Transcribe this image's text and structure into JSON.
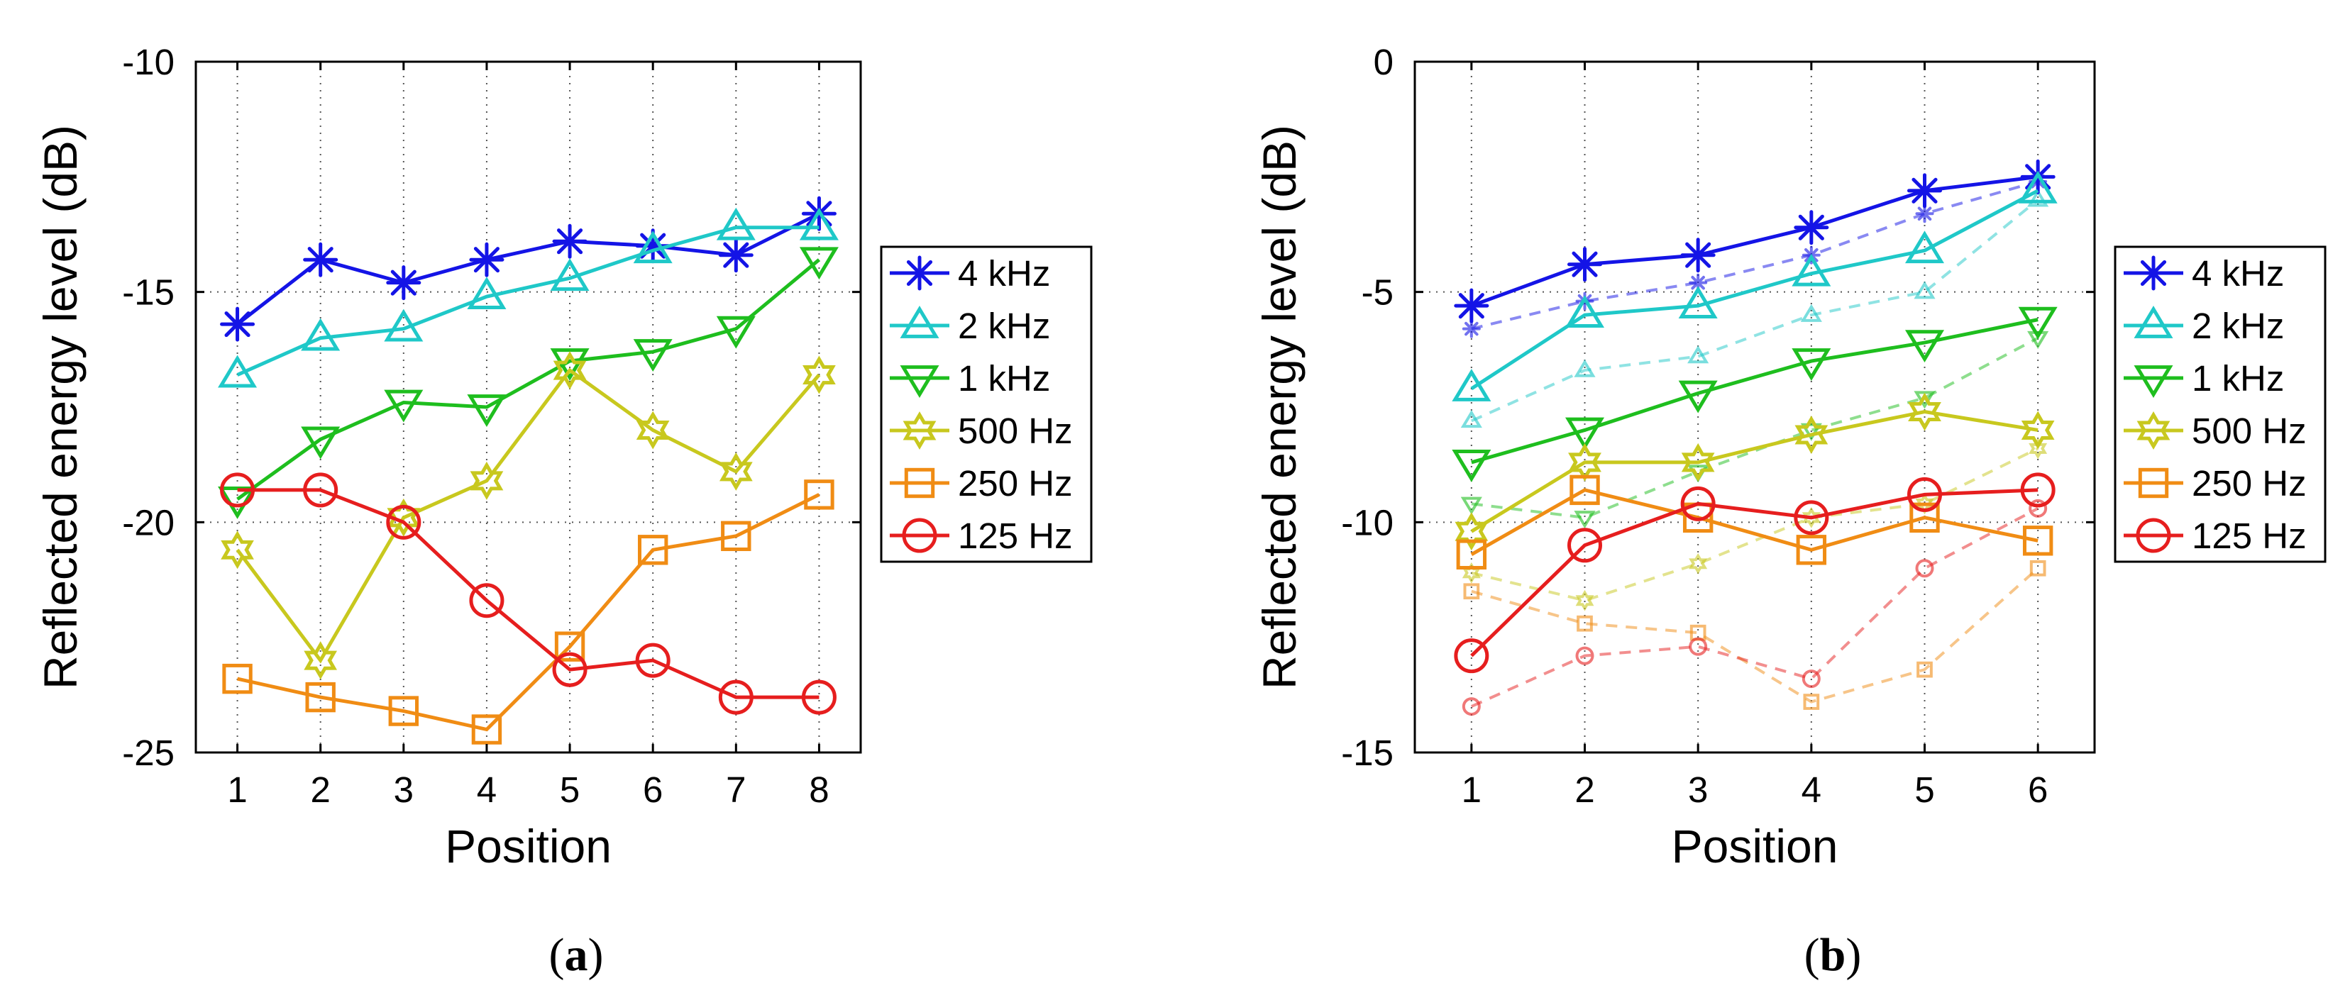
{
  "chart_data": [
    {
      "type": "line",
      "panel": "a",
      "caption_open": "(",
      "caption_letter": "a",
      "caption_close": ")",
      "xlabel": "Position",
      "ylabel": "Reflected energy level (dB)",
      "xlim": [
        0.5,
        8.5
      ],
      "ylim": [
        -25,
        -10
      ],
      "xticks": [
        1,
        2,
        3,
        4,
        5,
        6,
        7,
        8
      ],
      "yticks": [
        -25,
        -20,
        -15,
        -10
      ],
      "grid": true,
      "legend_position": "outside-right",
      "x": [
        1,
        2,
        3,
        4,
        5,
        6,
        7,
        8
      ],
      "series": [
        {
          "name": "4 kHz",
          "color": "#1414e6",
          "marker": "asterisk",
          "values": [
            -15.7,
            -14.3,
            -14.8,
            -14.3,
            -13.9,
            -14.0,
            -14.2,
            -13.3
          ]
        },
        {
          "name": "2 kHz",
          "color": "#1fc8c8",
          "marker": "triangle-up",
          "values": [
            -16.8,
            -16.0,
            -15.8,
            -15.1,
            -14.7,
            -14.1,
            -13.6,
            -13.6
          ]
        },
        {
          "name": "1 kHz",
          "color": "#1ebe1e",
          "marker": "triangle-down",
          "values": [
            -19.5,
            -18.2,
            -17.4,
            -17.5,
            -16.5,
            -16.3,
            -15.8,
            -14.3
          ]
        },
        {
          "name": "500 Hz",
          "color": "#c8c81e",
          "marker": "hexagram",
          "values": [
            -20.6,
            -23.0,
            -19.9,
            -19.1,
            -16.7,
            -18.0,
            -18.9,
            -16.8
          ]
        },
        {
          "name": "250 Hz",
          "color": "#f08c14",
          "marker": "square",
          "values": [
            -23.4,
            -23.8,
            -24.1,
            -24.5,
            -22.7,
            -20.6,
            -20.3,
            -19.4
          ]
        },
        {
          "name": "125 Hz",
          "color": "#e61e1e",
          "marker": "circle",
          "values": [
            -19.3,
            -19.3,
            -20.0,
            -21.7,
            -23.2,
            -23.0,
            -23.8,
            -23.8
          ]
        }
      ]
    },
    {
      "type": "line",
      "panel": "b",
      "caption_open": "(",
      "caption_letter": "b",
      "caption_close": ")",
      "xlabel": "Position",
      "ylabel": "Reflected energy level (dB)",
      "xlim": [
        0.5,
        6.5
      ],
      "ylim": [
        -15,
        0
      ],
      "xticks": [
        1,
        2,
        3,
        4,
        5,
        6
      ],
      "yticks": [
        -15,
        -10,
        -5,
        0
      ],
      "grid": true,
      "legend_position": "outside-right",
      "x": [
        1,
        2,
        3,
        4,
        5,
        6
      ],
      "series": [
        {
          "name": "4 kHz",
          "color": "#1414e6",
          "marker": "asterisk",
          "values": [
            -5.3,
            -4.4,
            -4.2,
            -3.6,
            -2.8,
            -2.5
          ]
        },
        {
          "name": "2 kHz",
          "color": "#1fc8c8",
          "marker": "triangle-up",
          "values": [
            -7.1,
            -5.5,
            -5.3,
            -4.6,
            -4.1,
            -2.8
          ]
        },
        {
          "name": "1 kHz",
          "color": "#1ebe1e",
          "marker": "triangle-down",
          "values": [
            -8.7,
            -8.0,
            -7.2,
            -6.5,
            -6.1,
            -5.6
          ]
        },
        {
          "name": "500 Hz",
          "color": "#c8c81e",
          "marker": "hexagram",
          "values": [
            -10.2,
            -8.7,
            -8.7,
            -8.1,
            -7.6,
            -8.0
          ]
        },
        {
          "name": "250 Hz",
          "color": "#f08c14",
          "marker": "square",
          "values": [
            -10.7,
            -9.3,
            -9.9,
            -10.6,
            -9.9,
            -10.4
          ]
        },
        {
          "name": "125 Hz",
          "color": "#e61e1e",
          "marker": "circle",
          "values": [
            -12.9,
            -10.5,
            -9.6,
            -9.9,
            -9.4,
            -9.3
          ]
        }
      ],
      "dashed_series": [
        {
          "name": "4 kHz",
          "color": "#1414e6",
          "marker": "asterisk",
          "values": [
            -5.8,
            -5.2,
            -4.8,
            -4.2,
            -3.3,
            -2.6
          ]
        },
        {
          "name": "2 kHz",
          "color": "#1fc8c8",
          "marker": "triangle-up",
          "values": [
            -7.8,
            -6.7,
            -6.4,
            -5.5,
            -5.0,
            -3.0
          ]
        },
        {
          "name": "1 kHz",
          "color": "#1ebe1e",
          "marker": "triangle-down",
          "values": [
            -9.6,
            -9.9,
            -8.9,
            -8.0,
            -7.3,
            -6.0
          ]
        },
        {
          "name": "500 Hz",
          "color": "#c8c81e",
          "marker": "hexagram",
          "values": [
            -11.1,
            -11.7,
            -10.9,
            -9.9,
            -9.6,
            -8.4
          ]
        },
        {
          "name": "250 Hz",
          "color": "#f08c14",
          "marker": "square",
          "values": [
            -11.5,
            -12.2,
            -12.4,
            -13.9,
            -13.2,
            -11.0
          ]
        },
        {
          "name": "125 Hz",
          "color": "#e61e1e",
          "marker": "circle",
          "values": [
            -14.0,
            -12.9,
            -12.7,
            -13.4,
            -11.0,
            -9.7
          ]
        }
      ]
    }
  ]
}
